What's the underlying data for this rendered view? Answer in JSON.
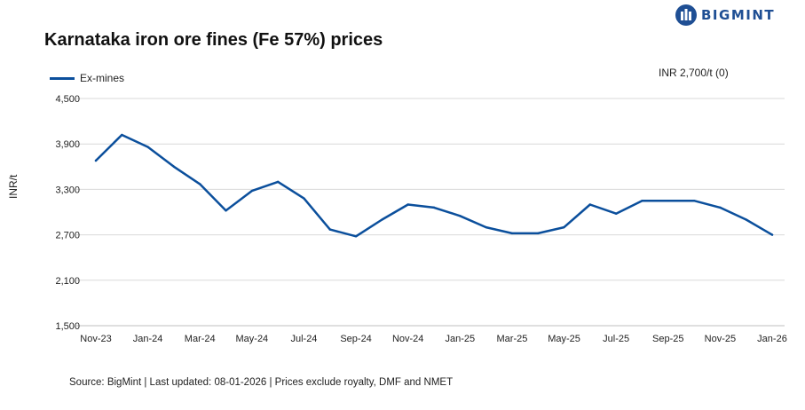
{
  "brand": {
    "name": "BIGMINT",
    "logo_icon": "bigmint-logo-icon",
    "color": "#1f4f94"
  },
  "chart_data": {
    "type": "line",
    "title": "Karnataka iron ore fines (Fe 57%) prices",
    "ylabel": "INR/t",
    "xlabel": "",
    "ylim": [
      1500,
      4500
    ],
    "yticks": [
      1500,
      2100,
      2700,
      3300,
      3900,
      4500
    ],
    "ytick_labels": [
      "1,500",
      "2,100",
      "2,700",
      "3,300",
      "3,900",
      "4,500"
    ],
    "x_categories": [
      "Nov-23",
      "Dec-23",
      "Jan-24",
      "Feb-24",
      "Mar-24",
      "Apr-24",
      "May-24",
      "Jun-24",
      "Jul-24",
      "Aug-24",
      "Sep-24",
      "Oct-24",
      "Nov-24",
      "Dec-24",
      "Jan-25",
      "Feb-25",
      "Mar-25",
      "Apr-25",
      "May-25",
      "Jun-25",
      "Jul-25",
      "Aug-25",
      "Sep-25",
      "Oct-25",
      "Nov-25",
      "Dec-25",
      "Jan-26"
    ],
    "xtick_labels": [
      "Nov-23",
      "Jan-24",
      "Mar-24",
      "May-24",
      "Jul-24",
      "Sep-24",
      "Nov-24",
      "Jan-25",
      "Mar-25",
      "May-25",
      "Jul-25",
      "Sep-25",
      "Nov-25",
      "Jan-26"
    ],
    "series": [
      {
        "name": "Ex-mines",
        "color": "#0b4f9c",
        "values": [
          3680,
          4020,
          3860,
          3600,
          3370,
          3020,
          3280,
          3400,
          3180,
          2770,
          2680,
          2900,
          3100,
          3060,
          2950,
          2800,
          2720,
          2720,
          2800,
          3100,
          2980,
          3150,
          3150,
          3150,
          3060,
          2900,
          2700
        ]
      }
    ],
    "grid": true,
    "legend_position": "top-left",
    "annotation": "INR 2,700/t (0)"
  },
  "footer": {
    "source": "Source: BigMint | Last updated: 08-01-2026 | Prices exclude royalty, DMF and NMET"
  }
}
